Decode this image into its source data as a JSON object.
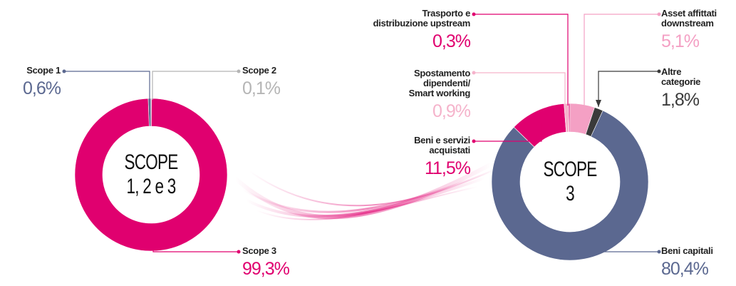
{
  "chart_data": [
    {
      "type": "pie",
      "center_text": "SCOPE\n1, 2 e 3",
      "categories": [
        "Scope 1",
        "Scope 2",
        "Scope 3"
      ],
      "values": [
        0.6,
        0.1,
        99.3
      ],
      "value_labels": [
        "0,6%",
        "0,1%",
        "99,3%"
      ],
      "colors": [
        "#5b6890",
        "#b5b5b5",
        "#e0006f"
      ]
    },
    {
      "type": "pie",
      "center_text": "SCOPE\n3",
      "categories": [
        "Trasporto e\ndistribuzione upstream",
        "Asset affittati\ndownstream",
        "Altre\ncategorie",
        "Beni capitali",
        "Beni e servizi\nacquistati",
        "Spostamento\ndipendenti/\nSmart working"
      ],
      "values": [
        0.3,
        5.1,
        1.8,
        80.4,
        11.5,
        0.9
      ],
      "value_labels": [
        "0,3%",
        "5,1%",
        "1,8%",
        "80,4%",
        "11,5%",
        "0,9%"
      ],
      "colors": [
        "#e0006f",
        "#f4a0c4",
        "#3a3a3a",
        "#5b6890",
        "#e0006f",
        "#f5b3cb"
      ]
    }
  ]
}
